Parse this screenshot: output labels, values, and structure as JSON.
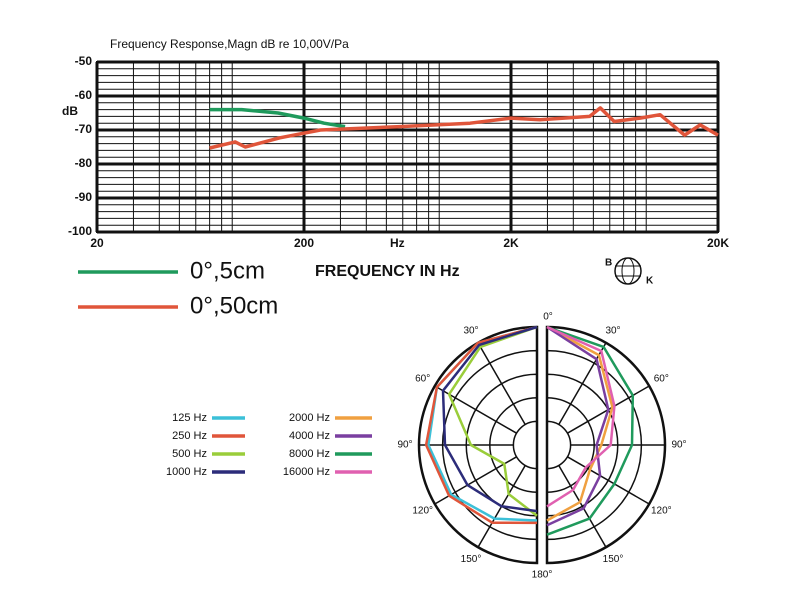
{
  "chart_data": [
    {
      "type": "line",
      "title": "Frequency Response,Magn dB re 10,00V/Pa",
      "ylabel": "dB",
      "xlabel": "FREQUENCY IN Hz",
      "xunit": "Hz",
      "xscale": "log",
      "xlim": [
        20,
        20000
      ],
      "ylim": [
        -100,
        -50
      ],
      "xticks": [
        20,
        200,
        {
          "value": 2000,
          "label": "2K"
        },
        {
          "value": 20000,
          "label": "20K"
        }
      ],
      "yticks": [
        -100,
        -90,
        -80,
        -70,
        -60,
        -50
      ],
      "grid": true,
      "logo_text": [
        "B",
        "K"
      ],
      "series": [
        {
          "name": "0°,5cm",
          "color": "#1f9a5c",
          "x": [
            70,
            100,
            150,
            200,
            250,
            316
          ],
          "values": [
            -64,
            -64,
            -65,
            -66.5,
            -68,
            -69
          ]
        },
        {
          "name": "0°,50cm",
          "color": "#e0553a",
          "x": [
            70,
            93,
            104,
            153,
            240,
            582,
            1268,
            2000,
            2760,
            4800,
            5400,
            6300,
            8400,
            10500,
            13800,
            16400,
            20000
          ],
          "values": [
            -75.3,
            -73.5,
            -75,
            -72.3,
            -70,
            -69,
            -68,
            -66.5,
            -67,
            -66,
            -63.5,
            -67.5,
            -66.5,
            -65.5,
            -71.5,
            -68.5,
            -71.5
          ]
        }
      ]
    },
    {
      "type": "polar",
      "theta": [
        0,
        30,
        60,
        90,
        120,
        150,
        180
      ],
      "thetaticks": [
        {
          "value": 0,
          "label": "0°"
        },
        {
          "value": 30,
          "label": "30°"
        },
        {
          "value": 60,
          "label": "60°"
        },
        {
          "value": 90,
          "label": "90°"
        },
        {
          "value": 120,
          "label": "120°"
        },
        {
          "value": 150,
          "label": "150°"
        },
        {
          "value": 180,
          "label": "180°"
        }
      ],
      "rlim": [
        0,
        5
      ],
      "rticks": [
        1,
        2,
        3,
        4,
        5
      ],
      "series": [
        {
          "name": "125 Hz",
          "color": "#3cc0d8",
          "side": "left",
          "values": [
            5,
            5,
            4.9,
            4.6,
            4.2,
            3.6,
            3.2
          ]
        },
        {
          "name": "250 Hz",
          "color": "#e0553a",
          "side": "left",
          "values": [
            5,
            5,
            4.9,
            4.7,
            4.3,
            3.8,
            3.3
          ]
        },
        {
          "name": "500 Hz",
          "color": "#9acd3a",
          "side": "left",
          "values": [
            5,
            4.8,
            4.3,
            2.8,
            1.6,
            2.4,
            3.0
          ]
        },
        {
          "name": "1000 Hz",
          "color": "#2c2c7a",
          "side": "left",
          "values": [
            5,
            4.9,
            4.6,
            3.9,
            3.4,
            3.0,
            2.8
          ]
        },
        {
          "name": "2000 Hz",
          "color": "#f0a040",
          "side": "right",
          "values": [
            5,
            4.4,
            3.2,
            2.3,
            2.1,
            2.8,
            3.2
          ]
        },
        {
          "name": "4000 Hz",
          "color": "#7a3fa0",
          "side": "right",
          "values": [
            5,
            4.2,
            3.0,
            2.1,
            2.6,
            3.1,
            3.4
          ]
        },
        {
          "name": "8000 Hz",
          "color": "#1f9a5c",
          "side": "right",
          "values": [
            5,
            4.8,
            4.2,
            3.6,
            3.3,
            3.6,
            3.8
          ]
        },
        {
          "name": "16000 Hz",
          "color": "#e060b0",
          "side": "right",
          "values": [
            5,
            4.6,
            3.3,
            2.7,
            1.9,
            2.2,
            2.6
          ]
        }
      ]
    }
  ]
}
